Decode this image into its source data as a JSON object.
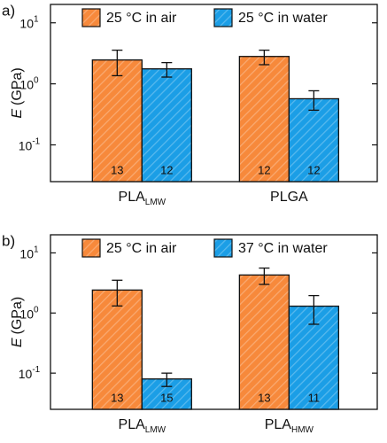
{
  "chart_data": [
    {
      "type": "bar",
      "panel_label": "a)",
      "log_y": true,
      "ylabel_symbol": "E",
      "ylabel_unit": "(GPa)",
      "categories": [
        {
          "text": "PLA",
          "subscript": "LMW"
        },
        {
          "text": "PLGA"
        }
      ],
      "series": [
        {
          "name": "25 °C in air",
          "color": "#f7893b",
          "values": [
            2.46,
            2.81
          ],
          "errors": [
            1.1,
            0.75
          ],
          "counts": [
            13,
            12
          ]
        },
        {
          "name": "25 °C in water",
          "color": "#1b9ee6",
          "values": [
            1.76,
            0.57
          ],
          "errors": [
            0.47,
            0.2
          ],
          "counts": [
            12,
            12
          ]
        }
      ],
      "ylim": [
        0.025,
        20
      ],
      "yticks": [
        {
          "value": 10,
          "label": "10",
          "exponent": "1"
        },
        {
          "value": 1,
          "label": "10",
          "exponent": "0"
        },
        {
          "value": 0.1,
          "label": "10",
          "exponent": "-1"
        }
      ]
    },
    {
      "type": "bar",
      "panel_label": "b)",
      "log_y": true,
      "ylabel_symbol": "E",
      "ylabel_unit": "(GPa)",
      "categories": [
        {
          "text": "PLA",
          "subscript": "LMW"
        },
        {
          "text": "PLA",
          "subscript": "HMW"
        }
      ],
      "series": [
        {
          "name": "25 °C in air",
          "color": "#f7893b",
          "values": [
            2.41,
            4.29
          ],
          "errors": [
            1.1,
            1.3
          ],
          "counts": [
            13,
            13
          ]
        },
        {
          "name": "37 °C in water",
          "color": "#1b9ee6",
          "values": [
            0.08,
            1.3
          ],
          "errors": [
            0.02,
            0.65
          ],
          "counts": [
            15,
            11
          ]
        }
      ],
      "ylim": [
        0.025,
        20
      ],
      "yticks": [
        {
          "value": 10,
          "label": "10",
          "exponent": "1"
        },
        {
          "value": 1,
          "label": "10",
          "exponent": "0"
        },
        {
          "value": 0.1,
          "label": "10",
          "exponent": "-1"
        }
      ]
    }
  ]
}
